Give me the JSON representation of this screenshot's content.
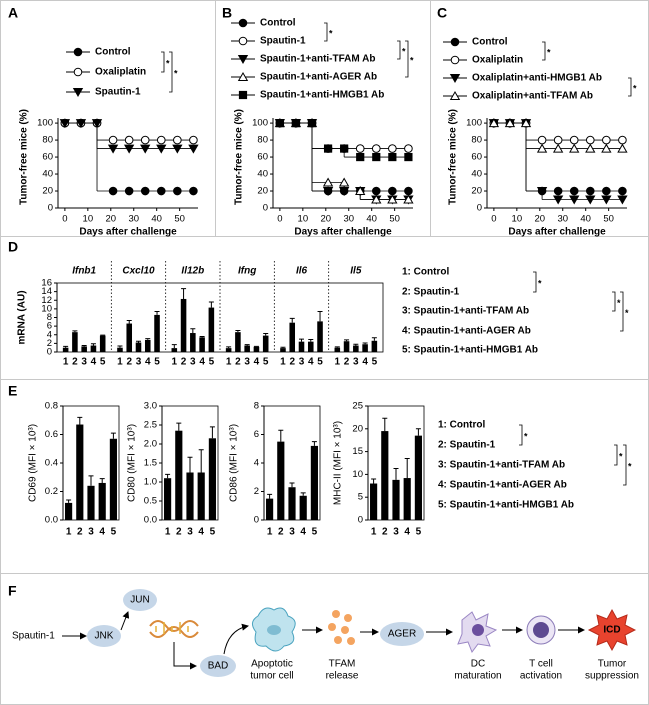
{
  "chart_data": [
    {
      "panel": "A",
      "type": "step",
      "xlabel": "Days after challenge",
      "ylabel": "Tumor-free mice (%)",
      "x": [
        0,
        7,
        14,
        21,
        28,
        35,
        42,
        49,
        56
      ],
      "xlim": [
        -3,
        58
      ],
      "xticks": [
        0,
        10,
        20,
        30,
        40,
        50
      ],
      "ylim": [
        0,
        106
      ],
      "yticks": [
        0,
        20,
        40,
        60,
        80,
        100
      ],
      "series": [
        {
          "name": "Control",
          "color": "#000000",
          "marker": "circle",
          "filled": true,
          "values": [
            100,
            100,
            100,
            20,
            20,
            20,
            20,
            20,
            20
          ]
        },
        {
          "name": "Oxaliplatin",
          "color": "#000000",
          "marker": "circle",
          "filled": false,
          "values": [
            100,
            100,
            100,
            80,
            80,
            80,
            80,
            80,
            80
          ]
        },
        {
          "name": "Spautin-1",
          "color": "#000000",
          "marker": "triangle-down",
          "filled": true,
          "values": [
            100,
            100,
            100,
            70,
            70,
            70,
            70,
            70,
            70
          ]
        }
      ],
      "annotations": [
        "*",
        "*"
      ]
    },
    {
      "panel": "B",
      "type": "step",
      "xlabel": "Days after challenge",
      "ylabel": "Tumor-free mice (%)",
      "x": [
        0,
        7,
        14,
        21,
        28,
        35,
        42,
        49,
        56
      ],
      "xlim": [
        -3,
        58
      ],
      "xticks": [
        0,
        10,
        20,
        30,
        40,
        50
      ],
      "ylim": [
        0,
        106
      ],
      "yticks": [
        0,
        20,
        40,
        60,
        80,
        100
      ],
      "series": [
        {
          "name": "Control",
          "color": "#000000",
          "marker": "circle",
          "filled": true,
          "values": [
            100,
            100,
            100,
            20,
            20,
            20,
            20,
            20,
            20
          ]
        },
        {
          "name": "Spautin-1",
          "color": "#000000",
          "marker": "circle",
          "filled": false,
          "values": [
            100,
            100,
            100,
            70,
            70,
            70,
            70,
            70,
            70
          ]
        },
        {
          "name": "Spautin-1+anti-TFAM Ab",
          "color": "#000000",
          "marker": "triangle-down",
          "filled": true,
          "values": [
            100,
            100,
            100,
            20,
            20,
            20,
            10,
            10,
            10
          ]
        },
        {
          "name": "Spautin-1+anti-AGER Ab",
          "color": "#000000",
          "marker": "triangle-up",
          "filled": false,
          "values": [
            100,
            100,
            100,
            30,
            30,
            20,
            10,
            10,
            10
          ]
        },
        {
          "name": "Spautin-1+anti-HMGB1 Ab",
          "color": "#000000",
          "marker": "square",
          "filled": true,
          "values": [
            100,
            100,
            100,
            70,
            70,
            60,
            60,
            60,
            60
          ]
        }
      ],
      "annotations": [
        "*",
        "*",
        "*"
      ]
    },
    {
      "panel": "C",
      "type": "step",
      "xlabel": "Days after challenge",
      "ylabel": "Tumor-free mice (%)",
      "x": [
        0,
        7,
        14,
        21,
        28,
        35,
        42,
        49,
        56
      ],
      "xlim": [
        -3,
        58
      ],
      "xticks": [
        0,
        10,
        20,
        30,
        40,
        50
      ],
      "ylim": [
        0,
        106
      ],
      "yticks": [
        0,
        20,
        40,
        60,
        80,
        100
      ],
      "series": [
        {
          "name": "Control",
          "color": "#000000",
          "marker": "circle",
          "filled": true,
          "values": [
            100,
            100,
            100,
            20,
            20,
            20,
            20,
            20,
            20
          ]
        },
        {
          "name": "Oxaliplatin",
          "color": "#000000",
          "marker": "circle",
          "filled": false,
          "values": [
            100,
            100,
            100,
            80,
            80,
            80,
            80,
            80,
            80
          ]
        },
        {
          "name": "Oxaliplatin+anti-HMGB1 Ab",
          "color": "#000000",
          "marker": "triangle-down",
          "filled": true,
          "values": [
            100,
            100,
            100,
            20,
            10,
            10,
            10,
            10,
            10
          ]
        },
        {
          "name": "Oxaliplatin+anti-TFAM Ab",
          "color": "#000000",
          "marker": "triangle-up",
          "filled": false,
          "values": [
            100,
            100,
            100,
            70,
            70,
            70,
            70,
            70,
            70
          ]
        }
      ],
      "annotations": [
        "*",
        "*"
      ]
    },
    {
      "panel": "D",
      "type": "grouped-bar",
      "ylabel": "mRNA (AU)",
      "color": "#000000",
      "categories": [
        "1",
        "2",
        "3",
        "4",
        "5"
      ],
      "groups": [
        {
          "name": "Ifnb1",
          "values": [
            1.0,
            4.6,
            1.3,
            1.5,
            3.8
          ],
          "errors": [
            0.3,
            0.3,
            0.2,
            0.4,
            0.1
          ]
        },
        {
          "name": "Cxcl10",
          "values": [
            1.0,
            6.6,
            2.2,
            2.8,
            8.6
          ],
          "errors": [
            0.4,
            0.7,
            0.3,
            0.3,
            0.8
          ]
        },
        {
          "name": "Il12b",
          "values": [
            0.9,
            12.3,
            4.4,
            3.4,
            10.3
          ],
          "errors": [
            0.8,
            2.4,
            1.0,
            0.2,
            1.3
          ]
        },
        {
          "name": "Ifng",
          "values": [
            0.9,
            4.6,
            1.5,
            1.2,
            3.8
          ],
          "errors": [
            0.3,
            0.4,
            0.2,
            0.1,
            0.5
          ]
        },
        {
          "name": "Il6",
          "values": [
            0.9,
            6.8,
            2.4,
            2.4,
            7.1
          ],
          "errors": [
            0.2,
            1.0,
            0.6,
            0.5,
            2.3
          ]
        },
        {
          "name": "Il5",
          "values": [
            1.0,
            2.5,
            1.5,
            1.8,
            2.6
          ],
          "errors": [
            0.2,
            0.3,
            0.3,
            0.3,
            0.7
          ]
        }
      ],
      "ylim": [
        0,
        16
      ],
      "yticks": [
        0,
        2,
        4,
        6,
        8,
        10,
        12,
        14,
        16
      ],
      "legend": [
        "1: Control",
        "2: Spautin-1",
        "3: Spautin-1+anti-TFAM Ab",
        "4: Spautin-1+anti-AGER Ab",
        "5: Spautin-1+anti-HMGB1 Ab"
      ],
      "annotations": [
        "*",
        "*",
        "*"
      ]
    },
    {
      "panel": "E",
      "type": "bar-panels",
      "color": "#000000",
      "categories": [
        "1",
        "2",
        "3",
        "4",
        "5"
      ],
      "charts": [
        {
          "ylabel": "CD69 (MFI × 10³)",
          "values": [
            0.12,
            0.67,
            0.24,
            0.26,
            0.57
          ],
          "errors": [
            0.02,
            0.05,
            0.07,
            0.03,
            0.04
          ],
          "ylim": [
            0,
            0.8
          ],
          "yticks": [
            {
              "value": 0,
              "label": "0.0"
            },
            0.2,
            0.4,
            0.6,
            0.8
          ]
        },
        {
          "ylabel": "CD80 (MFI × 10³)",
          "values": [
            1.1,
            2.35,
            1.25,
            1.25,
            2.15
          ],
          "errors": [
            0.1,
            0.2,
            0.4,
            0.6,
            0.3
          ],
          "ylim": [
            0,
            3
          ],
          "yticks": [
            {
              "value": 0,
              "label": "0.0"
            },
            0.5,
            {
              "value": 1,
              "label": "1.0"
            },
            1.5,
            {
              "value": 2,
              "label": "2.0"
            },
            2.5,
            {
              "value": 3,
              "label": "3.0"
            }
          ]
        },
        {
          "ylabel": "CD86 (MFI × 10³)",
          "values": [
            1.5,
            5.5,
            2.3,
            1.7,
            5.2
          ],
          "errors": [
            0.3,
            0.8,
            0.3,
            0.2,
            0.3
          ],
          "ylim": [
            0,
            8
          ],
          "yticks": [
            0,
            2,
            4,
            6,
            8
          ]
        },
        {
          "ylabel": "MHC-II (MFI × 10³)",
          "values": [
            8,
            19.5,
            8.8,
            9.2,
            18.5
          ],
          "errors": [
            1,
            2.8,
            2.5,
            4.3,
            1.5
          ],
          "ylim": [
            0,
            25
          ],
          "yticks": [
            0,
            5,
            10,
            15,
            20,
            25
          ]
        }
      ],
      "legend": [
        "1: Control",
        "2: Spautin-1",
        "3: Spautin-1+anti-TFAM Ab",
        "4: Spautin-1+anti-AGER Ab",
        "5: Spautin-1+anti-HMGB1 Ab"
      ],
      "annotations": [
        "*",
        "*",
        "*"
      ]
    }
  ],
  "diagram": {
    "panel": "F",
    "nodes": [
      {
        "label": [
          "Spautin-1"
        ]
      },
      {
        "label": [
          "JNK"
        ]
      },
      {
        "label": [
          "JUN"
        ]
      },
      {
        "label": [
          "BAD"
        ]
      },
      {
        "label": [
          "Apoptotic",
          "tumor cell"
        ]
      },
      {
        "label": [
          "TFAM",
          "release"
        ]
      },
      {
        "label": [
          "AGER"
        ]
      },
      {
        "label": [
          "DC",
          "maturation"
        ]
      },
      {
        "label": [
          "T cell",
          "activation"
        ]
      },
      {
        "label": [
          "ICD"
        ]
      },
      {
        "label": [
          "Tumor",
          "suppression"
        ]
      }
    ]
  }
}
